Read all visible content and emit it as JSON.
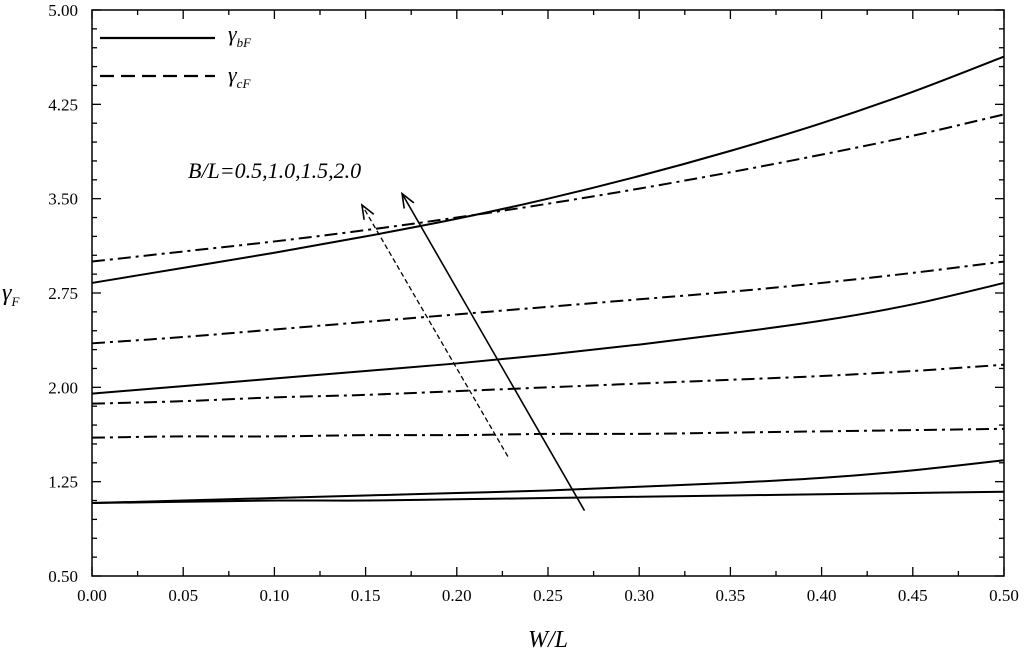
{
  "chart_data": {
    "type": "line",
    "xlabel": "W/L",
    "ylabel": {
      "main": "γ",
      "sub": "F"
    },
    "xlim": [
      0.0,
      0.5
    ],
    "ylim": [
      0.5,
      5.0
    ],
    "x_ticks": [
      "0.00",
      "0.05",
      "0.10",
      "0.15",
      "0.20",
      "0.25",
      "0.30",
      "0.35",
      "0.40",
      "0.45",
      "0.50"
    ],
    "y_ticks": [
      "0.50",
      "1.25",
      "2.00",
      "2.75",
      "3.50",
      "4.25",
      "5.00"
    ],
    "grid": false,
    "legend_position": "top-left",
    "legend": [
      {
        "main": "γ",
        "sub": "bF",
        "style": "solid"
      },
      {
        "main": "γ",
        "sub": "cF",
        "style": "dash-dot"
      }
    ],
    "annotation": "B/L=0.5,1.0,1.5,2.0",
    "x": [
      0.0,
      0.05,
      0.1,
      0.15,
      0.2,
      0.25,
      0.3,
      0.35,
      0.4,
      0.45,
      0.5
    ],
    "series": [
      {
        "group": "bF",
        "style": "solid",
        "values": [
          1.08,
          1.09,
          1.1,
          1.1,
          1.11,
          1.12,
          1.13,
          1.14,
          1.15,
          1.16,
          1.17
        ]
      },
      {
        "group": "bF",
        "style": "solid",
        "values": [
          1.08,
          1.1,
          1.12,
          1.14,
          1.16,
          1.18,
          1.21,
          1.24,
          1.28,
          1.34,
          1.42
        ]
      },
      {
        "group": "bF",
        "style": "solid",
        "values": [
          1.95,
          2.01,
          2.07,
          2.13,
          2.19,
          2.26,
          2.34,
          2.43,
          2.53,
          2.66,
          2.83
        ]
      },
      {
        "group": "bF",
        "style": "solid",
        "values": [
          2.83,
          2.95,
          3.07,
          3.2,
          3.34,
          3.5,
          3.68,
          3.88,
          4.1,
          4.35,
          4.63
        ]
      },
      {
        "group": "cF",
        "style": "dash-dot",
        "values": [
          1.6,
          1.61,
          1.61,
          1.62,
          1.62,
          1.63,
          1.63,
          1.64,
          1.65,
          1.66,
          1.67
        ]
      },
      {
        "group": "cF",
        "style": "dash-dot",
        "values": [
          1.87,
          1.89,
          1.92,
          1.94,
          1.97,
          2.0,
          2.03,
          2.06,
          2.09,
          2.13,
          2.18
        ]
      },
      {
        "group": "cF",
        "style": "dash-dot",
        "values": [
          2.35,
          2.4,
          2.46,
          2.52,
          2.58,
          2.64,
          2.7,
          2.76,
          2.83,
          2.91,
          3.0
        ]
      },
      {
        "group": "cF",
        "style": "dash-dot",
        "values": [
          3.0,
          3.08,
          3.16,
          3.25,
          3.35,
          3.46,
          3.58,
          3.71,
          3.85,
          4.0,
          4.17
        ]
      }
    ],
    "arrows": [
      {
        "style": "solid",
        "from": [
          0.27,
          1.02
        ],
        "to": [
          0.17,
          3.54
        ]
      },
      {
        "style": "dashed",
        "from": [
          0.228,
          1.45
        ],
        "to": [
          0.148,
          3.45
        ]
      }
    ]
  }
}
